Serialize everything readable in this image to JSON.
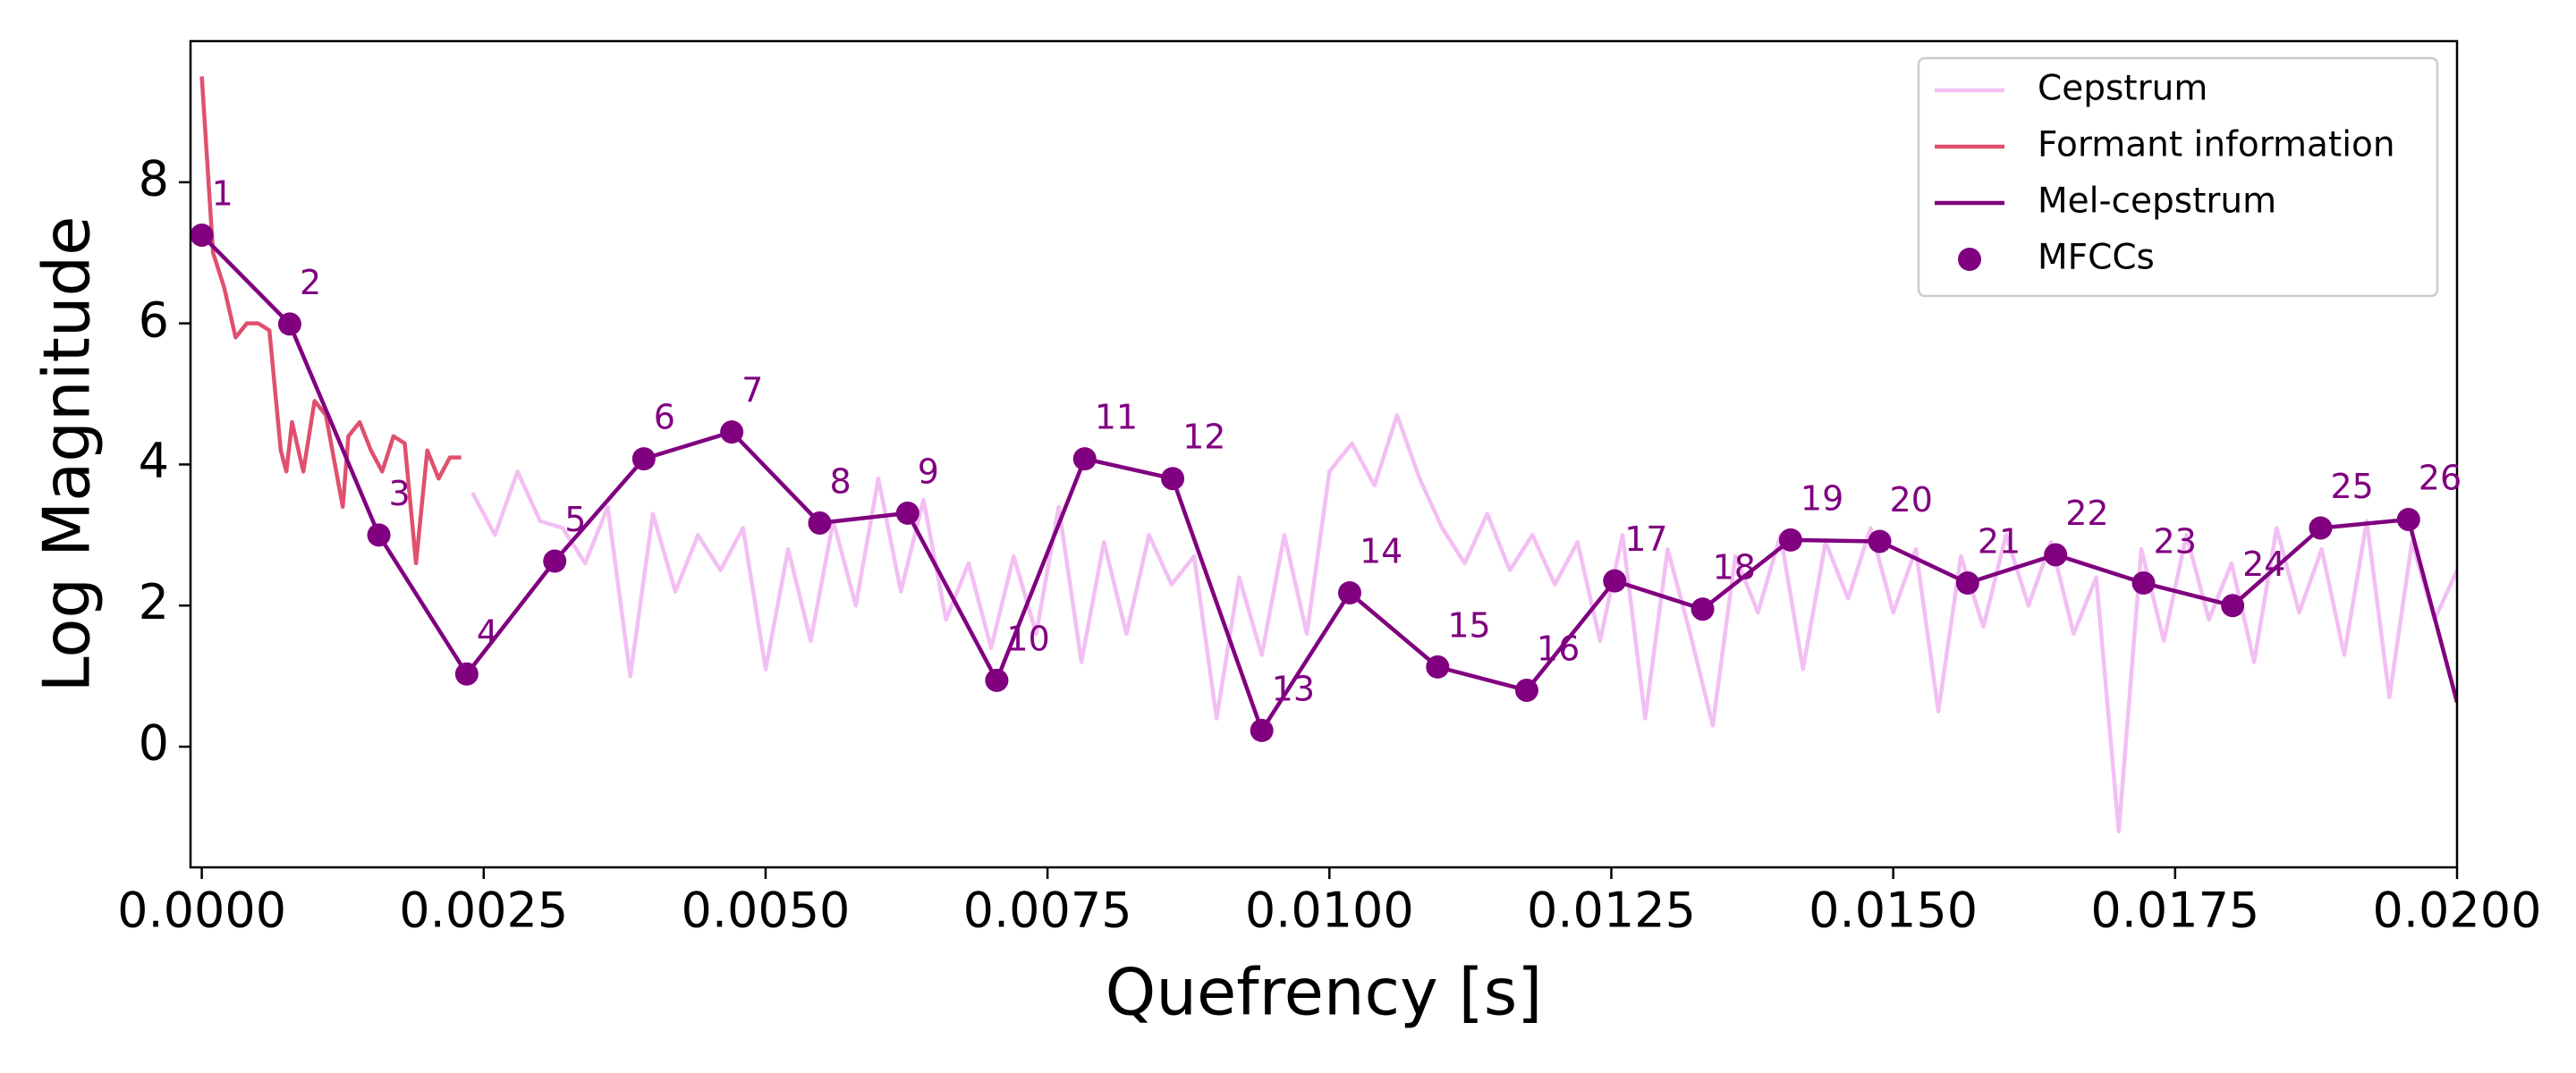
{
  "chart_data": {
    "type": "line",
    "xlabel": "Quefrency [s]",
    "ylabel": "Log Magnitude",
    "xlim": [
      -0.0001,
      0.02
    ],
    "ylim": [
      -1.71,
      10.0
    ],
    "xticks": [
      {
        "value": 0,
        "label": "0.0000"
      },
      {
        "value": 0.0025,
        "label": "0.0025"
      },
      {
        "value": 0.005,
        "label": "0.0050"
      },
      {
        "value": 0.0075,
        "label": "0.0075"
      },
      {
        "value": 0.01,
        "label": "0.0100"
      },
      {
        "value": 0.0125,
        "label": "0.0125"
      },
      {
        "value": 0.015,
        "label": "0.0150"
      },
      {
        "value": 0.0175,
        "label": "0.0175"
      },
      {
        "value": 0.02,
        "label": "0.0200"
      }
    ],
    "yticks": [
      0,
      2,
      4,
      6,
      8
    ],
    "grid": false,
    "legend": "upper right",
    "series": [
      {
        "name": "Cepstrum",
        "color": "#f3bff3",
        "type": "line",
        "x": [
          0.0024,
          0.0026,
          0.0028,
          0.003,
          0.0032,
          0.0034,
          0.0036,
          0.0038,
          0.004,
          0.0042,
          0.0044,
          0.0046,
          0.0048,
          0.005,
          0.0052,
          0.0054,
          0.0056,
          0.0058,
          0.006,
          0.0062,
          0.0064,
          0.0066,
          0.0068,
          0.007,
          0.0072,
          0.0074,
          0.0076,
          0.0078,
          0.008,
          0.0082,
          0.0084,
          0.0086,
          0.0088,
          0.009,
          0.0092,
          0.0094,
          0.0096,
          0.0098,
          0.01,
          0.0102,
          0.0104,
          0.0106,
          0.0108,
          0.011,
          0.0112,
          0.0114,
          0.0116,
          0.0118,
          0.012,
          0.0122,
          0.0124,
          0.0126,
          0.0128,
          0.013,
          0.0132,
          0.0134,
          0.0136,
          0.0138,
          0.014,
          0.0142,
          0.0144,
          0.0146,
          0.0148,
          0.015,
          0.0152,
          0.0154,
          0.0156,
          0.0158,
          0.016,
          0.0162,
          0.0164,
          0.0166,
          0.0168,
          0.017,
          0.0172,
          0.0174,
          0.0176,
          0.0178,
          0.018,
          0.0182,
          0.0184,
          0.0186,
          0.0188,
          0.019,
          0.0192,
          0.0194,
          0.0196,
          0.0198,
          0.02
        ],
        "values": [
          3.6,
          3.0,
          3.9,
          3.2,
          3.1,
          2.6,
          3.4,
          1.0,
          3.3,
          2.2,
          3.0,
          2.5,
          3.1,
          1.1,
          2.8,
          1.5,
          3.2,
          2.0,
          3.8,
          2.2,
          3.5,
          1.8,
          2.6,
          1.4,
          2.7,
          1.6,
          3.4,
          1.2,
          2.9,
          1.6,
          3.0,
          2.3,
          2.7,
          0.4,
          2.4,
          1.3,
          3.0,
          1.6,
          3.9,
          4.3,
          3.7,
          4.7,
          3.8,
          3.1,
          2.6,
          3.3,
          2.5,
          3.0,
          2.3,
          2.9,
          1.5,
          3.0,
          0.4,
          2.8,
          1.6,
          0.3,
          2.7,
          1.9,
          3.0,
          1.1,
          2.9,
          2.1,
          3.1,
          1.9,
          2.8,
          0.5,
          2.7,
          1.7,
          3.0,
          2.0,
          2.9,
          1.6,
          2.4,
          -1.2,
          2.8,
          1.5,
          3.0,
          1.8,
          2.6,
          1.2,
          3.1,
          1.9,
          2.8,
          1.3,
          3.2,
          0.7,
          2.9,
          1.8,
          2.5
        ]
      },
      {
        "name": "Formant information",
        "color": "#e0506e",
        "type": "line",
        "x": [
          0,
          0.0001,
          0.0002,
          0.0003,
          0.0004,
          0.0005,
          0.0006,
          0.0007,
          0.00075,
          0.0008,
          0.0009,
          0.001,
          0.0011,
          0.00125,
          0.0013,
          0.0014,
          0.0015,
          0.0016,
          0.0017,
          0.0018,
          0.0019,
          0.002,
          0.0021,
          0.0022,
          0.0023
        ],
        "values": [
          9.5,
          7.0,
          6.5,
          5.8,
          6.0,
          6.0,
          5.9,
          4.2,
          3.9,
          4.6,
          3.9,
          4.9,
          4.7,
          3.4,
          4.4,
          4.6,
          4.2,
          3.9,
          4.4,
          4.3,
          2.6,
          4.2,
          3.8,
          4.1,
          4.1
        ]
      },
      {
        "name": "Mel-cepstrum",
        "color": "#800080",
        "type": "line",
        "x": [
          0,
          0.00078,
          0.00157,
          0.00235,
          0.00313,
          0.00392,
          0.0047,
          0.00548,
          0.00626,
          0.00705,
          0.00783,
          0.00861,
          0.0094,
          0.01018,
          0.01096,
          0.01175,
          0.01253,
          0.01331,
          0.01409,
          0.01488,
          0.01566,
          0.01644,
          0.01722,
          0.01801,
          0.01879,
          0.01957,
          0.02
        ],
        "values": [
          7.25,
          5.99,
          3.0,
          1.03,
          2.63,
          4.08,
          4.46,
          3.17,
          3.31,
          0.94,
          4.08,
          3.8,
          0.23,
          2.18,
          1.13,
          0.8,
          2.35,
          1.95,
          2.93,
          2.91,
          2.32,
          2.72,
          2.32,
          2.0,
          3.1,
          3.22,
          0.63
        ]
      },
      {
        "name": "MFCCs",
        "color": "#800080",
        "type": "scatter",
        "x": [
          0,
          0.00078,
          0.00157,
          0.00235,
          0.00313,
          0.00392,
          0.0047,
          0.00548,
          0.00626,
          0.00705,
          0.00783,
          0.00861,
          0.0094,
          0.01018,
          0.01096,
          0.01175,
          0.01253,
          0.01331,
          0.01409,
          0.01488,
          0.01566,
          0.01644,
          0.01722,
          0.01801,
          0.01879,
          0.01957
        ],
        "values": [
          7.25,
          5.99,
          3.0,
          1.03,
          2.63,
          4.08,
          4.46,
          3.17,
          3.31,
          0.94,
          4.08,
          3.8,
          0.23,
          2.18,
          1.13,
          0.8,
          2.35,
          1.95,
          2.93,
          2.91,
          2.32,
          2.72,
          2.32,
          2.0,
          3.1,
          3.22
        ],
        "labels": [
          1,
          2,
          3,
          4,
          5,
          6,
          7,
          8,
          9,
          10,
          11,
          12,
          13,
          14,
          15,
          16,
          17,
          18,
          19,
          20,
          21,
          22,
          23,
          24,
          25,
          26
        ]
      }
    ]
  }
}
